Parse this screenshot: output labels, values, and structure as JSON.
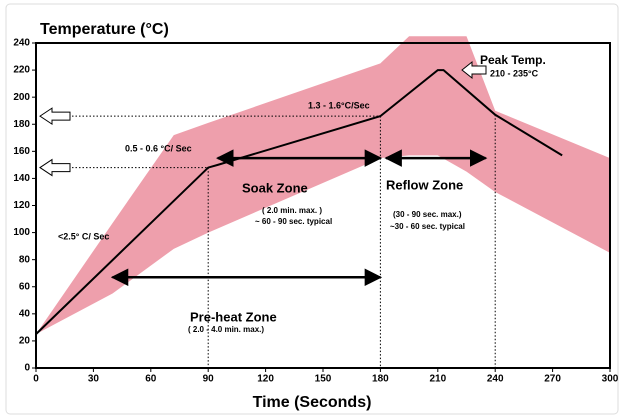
{
  "chart_data": {
    "type": "line",
    "title": "Temperature (°C)",
    "x_label": "Time (Seconds)",
    "x": [
      0,
      90,
      95,
      180,
      210,
      213,
      240,
      275
    ],
    "values": [
      25,
      148,
      150,
      186,
      220,
      220,
      187,
      157
    ],
    "color": "#000000",
    "band": {
      "color": "#ee9fac",
      "x": [
        0,
        40,
        72,
        90,
        180,
        195,
        210,
        225,
        240,
        300
      ],
      "upper": [
        25,
        107,
        172,
        181,
        225,
        245,
        245,
        245,
        190,
        155
      ],
      "lower": [
        25,
        55,
        88,
        100,
        155,
        157,
        157,
        145,
        130,
        85
      ]
    },
    "guides": [
      {
        "x": 90,
        "y": 148,
        "horizontal": true
      },
      {
        "x": 180,
        "y": 186,
        "horizontal": true
      },
      {
        "x": 240,
        "y": 187,
        "horizontal": false
      }
    ],
    "spans": [
      {
        "from": 95,
        "to": 180,
        "y": 155
      },
      {
        "from": 183,
        "to": 235,
        "y": 155
      },
      {
        "from": 40,
        "to": 180,
        "y": 67
      }
    ],
    "annotations": [
      "Peak Temp.",
      "210 - 235°C",
      "1.3 - 1.6°C/Sec",
      "0.5 - 0.6 °C/ Sec",
      "<2.5° C/ Sec",
      "Soak Zone",
      "( 2.0 min. max. )",
      "~ 60 - 90 sec. typical",
      "Reflow Zone",
      "(30 - 90 sec. max.)",
      "~30 - 60 sec. typical",
      "Pre-heat Zone",
      "( 2.0 - 4.0 min. max.)"
    ],
    "xlim": [
      0,
      300
    ],
    "xticks": [
      0,
      30,
      60,
      90,
      120,
      150,
      180,
      210,
      240,
      270,
      300
    ],
    "ylim": [
      0,
      240
    ],
    "yticks": [
      0,
      20,
      40,
      60,
      80,
      100,
      120,
      140,
      160,
      180,
      200,
      220,
      240
    ]
  }
}
